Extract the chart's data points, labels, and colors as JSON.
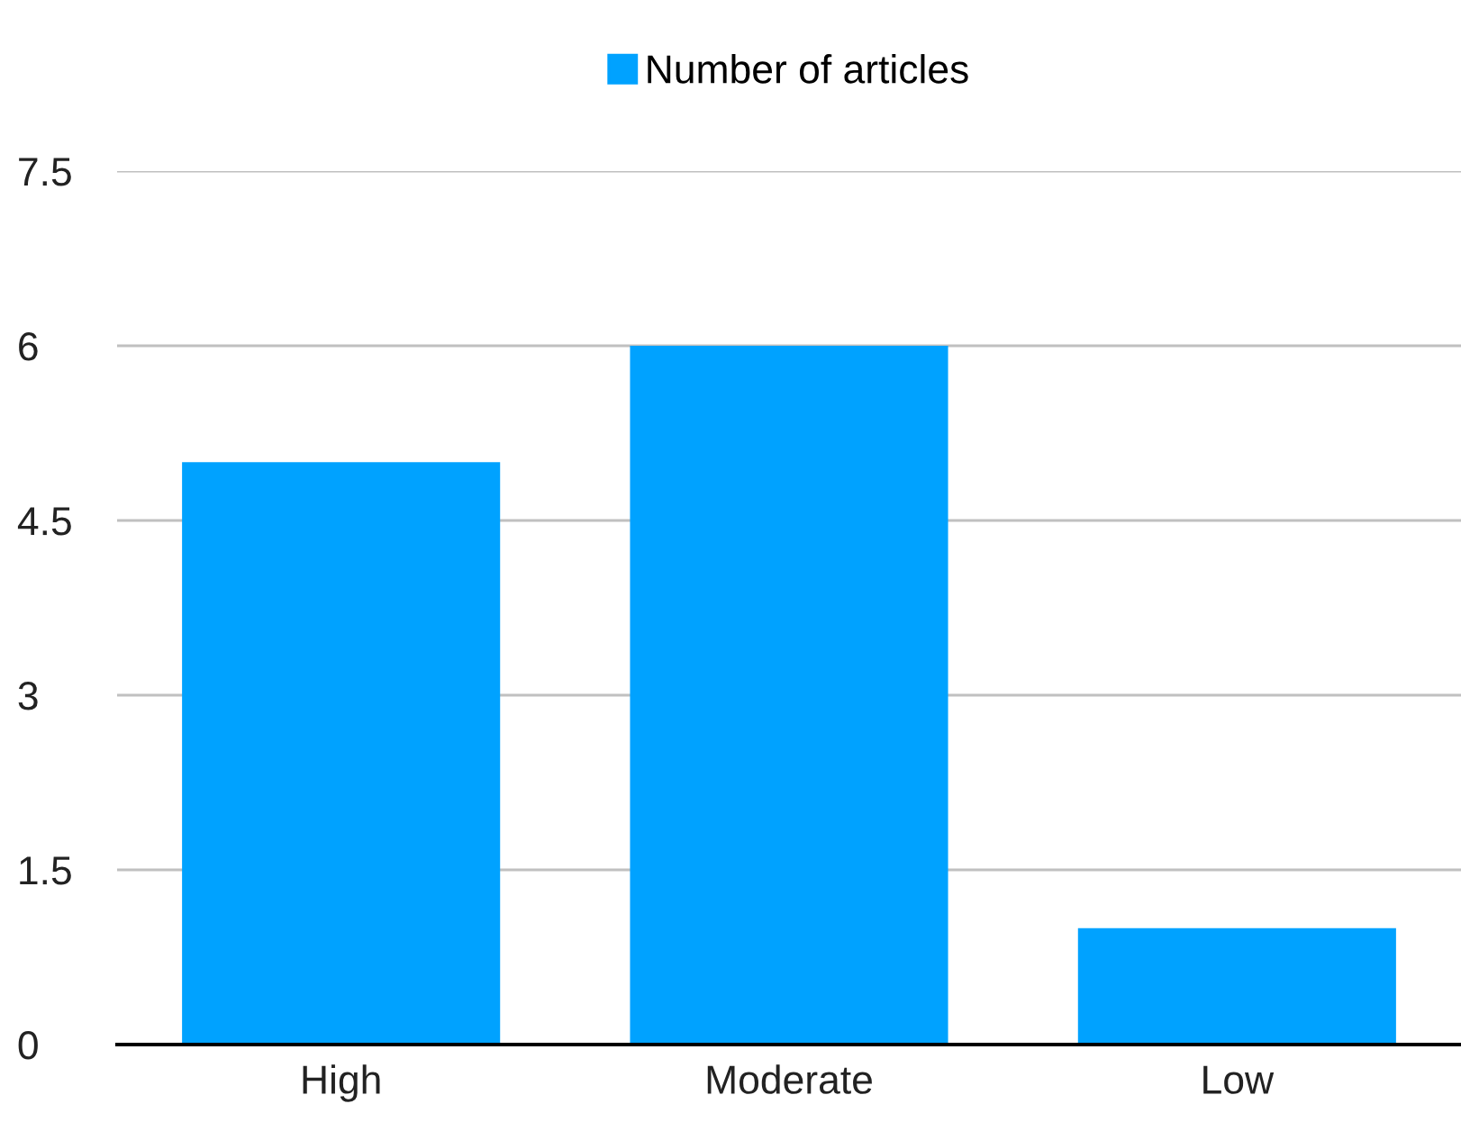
{
  "chart_data": {
    "type": "bar",
    "categories": [
      "High",
      "Moderate",
      "Low"
    ],
    "series": [
      {
        "name": "Number of articles",
        "color": "#00a2ff",
        "values": [
          5,
          6,
          1
        ]
      }
    ],
    "ylim": [
      0,
      7.5
    ],
    "yticks": [
      0,
      1.5,
      3,
      4.5,
      6,
      7.5
    ],
    "grid": "y",
    "legend": "top"
  }
}
